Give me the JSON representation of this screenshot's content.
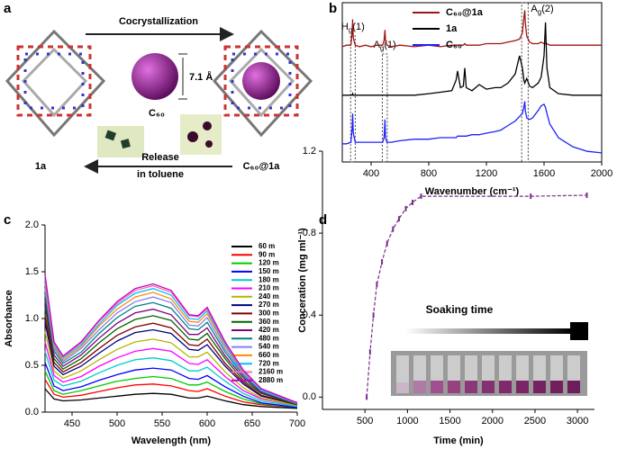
{
  "figure_a": {
    "panel": "a",
    "arrow_top": "Cocrystallization",
    "size": "7.1 Å",
    "guest": "C₆₀",
    "host": "1a",
    "arrow_bottom": [
      "Release",
      "in toluene"
    ],
    "complex": "C₆₀@1a"
  },
  "chart_data": [
    {
      "type": "line",
      "panel": "b",
      "x_label": "Wavenumber (cm⁻¹)",
      "x": [
        200,
        230,
        260,
        268,
        272,
        276,
        290,
        320,
        360,
        400,
        440,
        480,
        490,
        496,
        500,
        510,
        540,
        600,
        700,
        800,
        880,
        960,
        990,
        1000,
        1020,
        1040,
        1050,
        1060,
        1100,
        1150,
        1200,
        1260,
        1300,
        1350,
        1400,
        1430,
        1450,
        1460,
        1466,
        1470,
        1480,
        1500,
        1520,
        1560,
        1580,
        1600,
        1610,
        1620,
        1640,
        1700,
        1800,
        1900,
        2000
      ],
      "xlim": [
        200,
        2000
      ],
      "xticks": [
        400,
        800,
        1200,
        1600,
        2000
      ],
      "ylim": [
        0,
        10.5
      ],
      "legend": "top-center",
      "series": [
        {
          "name": "C₆₀@1a",
          "color": "#a01414",
          "values": [
            7.6,
            7.7,
            7.7,
            8.5,
            9.4,
            8.2,
            7.7,
            7.6,
            7.7,
            7.6,
            7.7,
            7.7,
            8.0,
            8.7,
            8.0,
            7.7,
            7.6,
            7.7,
            7.6,
            7.7,
            7.6,
            7.7,
            7.7,
            7.7,
            7.7,
            7.7,
            7.8,
            7.7,
            7.7,
            7.7,
            7.8,
            7.8,
            7.8,
            7.9,
            8.0,
            8.1,
            8.5,
            9.5,
            10.0,
            9.2,
            8.3,
            7.9,
            7.8,
            7.8,
            7.9,
            7.8,
            7.8,
            7.8,
            7.7,
            7.7,
            7.7,
            7.7,
            7.7
          ]
        },
        {
          "name": "1a",
          "color": "#000000",
          "values": [
            4.4,
            4.4,
            4.4,
            4.4,
            4.5,
            4.4,
            4.4,
            4.4,
            4.4,
            4.4,
            4.4,
            4.4,
            4.4,
            4.4,
            4.4,
            4.4,
            4.4,
            4.4,
            4.4,
            4.5,
            4.6,
            4.7,
            5.4,
            6.0,
            4.9,
            5.0,
            6.2,
            4.9,
            4.7,
            5.1,
            4.8,
            4.9,
            4.9,
            5.2,
            5.8,
            7.0,
            6.2,
            5.4,
            5.2,
            5.3,
            5.5,
            5.0,
            4.9,
            5.2,
            5.6,
            7.0,
            9.2,
            6.2,
            4.9,
            4.5,
            4.4,
            4.4,
            4.4
          ]
        },
        {
          "name": "C₆₀",
          "color": "#2020ff",
          "values": [
            1.2,
            1.2,
            1.3,
            2.2,
            3.2,
            1.9,
            1.3,
            1.3,
            1.3,
            1.3,
            1.3,
            1.3,
            1.6,
            2.8,
            1.6,
            1.3,
            1.3,
            1.4,
            1.5,
            1.5,
            1.6,
            1.6,
            1.6,
            1.7,
            1.7,
            1.7,
            1.7,
            1.7,
            1.8,
            1.8,
            1.9,
            2.0,
            2.1,
            2.4,
            2.7,
            3.0,
            3.2,
            3.6,
            4.0,
            3.4,
            2.9,
            2.8,
            2.9,
            3.4,
            3.7,
            3.8,
            3.6,
            3.2,
            2.5,
            1.6,
            1.0,
            0.7,
            0.6
          ]
        }
      ],
      "annotations": [
        {
          "parts": [
            "H",
            "g",
            "(1)"
          ],
          "range": [
            258,
            290
          ]
        },
        {
          "parts": [
            "A",
            "g",
            "(1)"
          ],
          "range": [
            478,
            512
          ]
        },
        {
          "parts": [
            "A",
            "g",
            "(2)"
          ],
          "range": [
            1445,
            1490
          ]
        }
      ]
    },
    {
      "type": "line",
      "panel": "c",
      "x_label": "Wavelength (nm)",
      "y_label": "Absorbance",
      "x": [
        420,
        430,
        440,
        460,
        480,
        500,
        520,
        540,
        560,
        580,
        590,
        600,
        620,
        640,
        660,
        700
      ],
      "xlim": [
        420,
        700
      ],
      "xticks": [
        450,
        500,
        550,
        600,
        650,
        700
      ],
      "ylim": [
        0,
        2
      ],
      "yticks": [
        {
          "value": 0,
          "label": "0.0"
        },
        {
          "value": 0.5,
          "label": "0.5"
        },
        {
          "value": 1,
          "label": "1.0"
        },
        {
          "value": 1.5,
          "label": "1.5"
        },
        {
          "value": 2,
          "label": "2.0"
        }
      ],
      "legend": "top-right",
      "series": [
        {
          "name": "60 m",
          "color": "#000000",
          "values": [
            0.25,
            0.14,
            0.12,
            0.13,
            0.15,
            0.17,
            0.19,
            0.2,
            0.19,
            0.15,
            0.15,
            0.17,
            0.12,
            0.08,
            0.06,
            0.04
          ]
        },
        {
          "name": "90 m",
          "color": "#ff0000",
          "values": [
            0.35,
            0.19,
            0.16,
            0.18,
            0.22,
            0.26,
            0.29,
            0.3,
            0.28,
            0.23,
            0.22,
            0.25,
            0.17,
            0.11,
            0.08,
            0.05
          ]
        },
        {
          "name": "120 m",
          "color": "#00cc00",
          "values": [
            0.44,
            0.23,
            0.19,
            0.23,
            0.28,
            0.33,
            0.36,
            0.38,
            0.36,
            0.29,
            0.29,
            0.32,
            0.22,
            0.14,
            0.09,
            0.05
          ]
        },
        {
          "name": "150 m",
          "color": "#0000ff",
          "values": [
            0.53,
            0.28,
            0.23,
            0.27,
            0.34,
            0.4,
            0.45,
            0.47,
            0.45,
            0.36,
            0.35,
            0.39,
            0.27,
            0.17,
            0.1,
            0.05
          ]
        },
        {
          "name": "180 m",
          "color": "#00cccc",
          "values": [
            0.65,
            0.34,
            0.28,
            0.33,
            0.42,
            0.5,
            0.56,
            0.58,
            0.55,
            0.44,
            0.44,
            0.48,
            0.33,
            0.2,
            0.12,
            0.06
          ]
        },
        {
          "name": "210 m",
          "color": "#ff00ff",
          "values": [
            0.75,
            0.39,
            0.32,
            0.38,
            0.49,
            0.58,
            0.65,
            0.68,
            0.65,
            0.52,
            0.51,
            0.56,
            0.38,
            0.23,
            0.14,
            0.07
          ]
        },
        {
          "name": "240 m",
          "color": "#b5b500",
          "values": [
            0.86,
            0.44,
            0.36,
            0.44,
            0.56,
            0.67,
            0.75,
            0.78,
            0.74,
            0.59,
            0.59,
            0.64,
            0.43,
            0.26,
            0.15,
            0.07
          ]
        },
        {
          "name": "270 m",
          "color": "#000080",
          "values": [
            0.96,
            0.49,
            0.4,
            0.49,
            0.63,
            0.76,
            0.85,
            0.88,
            0.84,
            0.67,
            0.66,
            0.72,
            0.49,
            0.3,
            0.17,
            0.08
          ]
        },
        {
          "name": "300 m",
          "color": "#800000",
          "values": [
            1.03,
            0.53,
            0.43,
            0.53,
            0.68,
            0.82,
            0.91,
            0.95,
            0.9,
            0.72,
            0.71,
            0.78,
            0.52,
            0.32,
            0.18,
            0.08
          ]
        },
        {
          "name": "360 m",
          "color": "#006400",
          "values": [
            1.12,
            0.57,
            0.46,
            0.57,
            0.74,
            0.89,
            0.99,
            1.03,
            0.98,
            0.78,
            0.77,
            0.84,
            0.57,
            0.34,
            0.2,
            0.08
          ]
        },
        {
          "name": "420 m",
          "color": "#800080",
          "values": [
            1.19,
            0.61,
            0.49,
            0.61,
            0.79,
            0.95,
            1.06,
            1.1,
            1.04,
            0.83,
            0.83,
            0.9,
            0.6,
            0.37,
            0.21,
            0.09
          ]
        },
        {
          "name": "480 m",
          "color": "#008080",
          "values": [
            1.26,
            0.65,
            0.52,
            0.64,
            0.84,
            1.01,
            1.13,
            1.17,
            1.11,
            0.89,
            0.88,
            0.96,
            0.64,
            0.39,
            0.22,
            0.09
          ]
        },
        {
          "name": "540 m",
          "color": "#8080ff",
          "values": [
            1.32,
            0.68,
            0.54,
            0.68,
            0.88,
            1.06,
            1.18,
            1.23,
            1.17,
            0.93,
            0.92,
            1.01,
            0.67,
            0.41,
            0.23,
            0.09
          ]
        },
        {
          "name": "660 m",
          "color": "#ff8c00",
          "values": [
            1.38,
            0.7,
            0.56,
            0.7,
            0.92,
            1.1,
            1.23,
            1.28,
            1.21,
            0.97,
            0.96,
            1.05,
            0.7,
            0.42,
            0.24,
            0.1
          ]
        },
        {
          "name": "720 m",
          "color": "#00bfff",
          "values": [
            1.42,
            0.72,
            0.58,
            0.72,
            0.94,
            1.14,
            1.27,
            1.32,
            1.25,
            1.0,
            0.99,
            1.08,
            0.72,
            0.43,
            0.24,
            0.1
          ]
        },
        {
          "name": "2160 m",
          "color": "#ff69b4",
          "values": [
            1.45,
            0.74,
            0.59,
            0.74,
            0.97,
            1.16,
            1.3,
            1.35,
            1.28,
            1.03,
            1.02,
            1.1,
            0.74,
            0.44,
            0.25,
            0.1
          ]
        },
        {
          "name": "2880 m",
          "color": "#c000c0",
          "values": [
            1.47,
            0.75,
            0.6,
            0.75,
            0.98,
            1.18,
            1.32,
            1.37,
            1.3,
            1.04,
            1.03,
            1.12,
            0.75,
            0.45,
            0.25,
            0.1
          ]
        }
      ]
    },
    {
      "type": "line",
      "panel": "d",
      "x_label": "Time (min)",
      "y_label": "Conceration (mg ml⁻¹)",
      "note": "Soaking time",
      "x": [
        520,
        560,
        600,
        640,
        700,
        760,
        830,
        900,
        980,
        1060,
        1160,
        2450,
        3110
      ],
      "xlim": [
        0,
        3200
      ],
      "xticks": [
        500,
        1000,
        1500,
        2000,
        2500,
        3000
      ],
      "ylim": [
        -0.06,
        1.2
      ],
      "yticks": [
        {
          "value": 0,
          "label": "0.0"
        },
        {
          "value": 0.4,
          "label": "0.4"
        },
        {
          "value": 0.8,
          "label": "0.8"
        },
        {
          "value": 1.2,
          "label": "1.2"
        }
      ],
      "markers": true,
      "series": [
        {
          "color": "#7b2d8e",
          "values": [
            0,
            0.22,
            0.4,
            0.55,
            0.66,
            0.75,
            0.82,
            0.87,
            0.92,
            0.95,
            0.98,
            0.98,
            0.985
          ]
        }
      ]
    }
  ]
}
